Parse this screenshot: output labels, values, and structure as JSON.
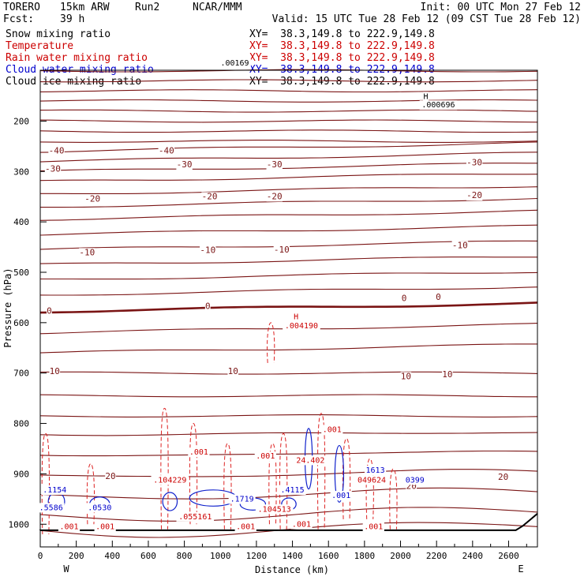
{
  "header": {
    "model": "TORERO",
    "resolution": "15km ARW",
    "run": "Run2",
    "org": "NCAR/MMM",
    "init": "Init: 00 UTC Mon 27 Feb 12",
    "fcst_label": "Fcst:",
    "fcst_value": "39 h",
    "valid": "Valid: 15 UTC Tue 28 Feb 12 (09 CST Tue 28 Feb 12)"
  },
  "fields": [
    {
      "name": "Snow mixing ratio",
      "color": "#000000",
      "xy": "XY=  38.3,149.8 to 222.9,149.8"
    },
    {
      "name": "Temperature",
      "color": "#cc0000",
      "xy": "XY=  38.3,149.8 to 222.9,149.8"
    },
    {
      "name": "Rain water mixing ratio",
      "color": "#cc0000",
      "xy": "XY=  38.3,149.8 to 222.9,149.8"
    },
    {
      "name": "Cloud water mixing ratio",
      "color": "#0000cc",
      "xy": "XY=  38.3,149.8 to 222.9,149.8"
    },
    {
      "name": "Cloud ice mixing ratio",
      "color": "#000000",
      "xy": "XY=  38.3,149.8 to 222.9,149.8"
    }
  ],
  "chart_data": {
    "type": "contour",
    "xlabel": "Distance (km)",
    "ylabel": "Pressure (hPa)",
    "xlim": [
      0,
      2760
    ],
    "ylim": [
      1050,
      100
    ],
    "xticks": [
      0,
      200,
      400,
      600,
      800,
      1000,
      1200,
      1400,
      1600,
      1800,
      2000,
      2200,
      2400,
      2600
    ],
    "yticks": [
      200,
      300,
      400,
      500,
      600,
      700,
      800,
      900,
      1000
    ],
    "x_end_labels": {
      "left": "W",
      "right": "E"
    },
    "temperature_labels": [
      {
        "text": "-40",
        "x": 90,
        "p": 264
      },
      {
        "text": "-40",
        "x": 700,
        "p": 264
      },
      {
        "text": "-30",
        "x": 70,
        "p": 300
      },
      {
        "text": "-30",
        "x": 800,
        "p": 292
      },
      {
        "text": "-30",
        "x": 1300,
        "p": 292
      },
      {
        "text": "-30",
        "x": 2410,
        "p": 288
      },
      {
        "text": "-20",
        "x": 290,
        "p": 360
      },
      {
        "text": "-20",
        "x": 940,
        "p": 355
      },
      {
        "text": "-20",
        "x": 1300,
        "p": 355
      },
      {
        "text": "-20",
        "x": 2410,
        "p": 353
      },
      {
        "text": "-10",
        "x": 260,
        "p": 466
      },
      {
        "text": "-10",
        "x": 930,
        "p": 462
      },
      {
        "text": "-10",
        "x": 1340,
        "p": 461
      },
      {
        "text": "-10",
        "x": 2330,
        "p": 452
      },
      {
        "text": "0",
        "x": 50,
        "p": 582
      },
      {
        "text": "0",
        "x": 930,
        "p": 573
      },
      {
        "text": "0",
        "x": 2020,
        "p": 557
      },
      {
        "text": "0",
        "x": 2210,
        "p": 555
      },
      {
        "text": "10",
        "x": 80,
        "p": 702
      },
      {
        "text": "10",
        "x": 1070,
        "p": 702
      },
      {
        "text": "10",
        "x": 2030,
        "p": 712
      },
      {
        "text": "10",
        "x": 2260,
        "p": 708
      },
      {
        "text": "20",
        "x": 390,
        "p": 910
      },
      {
        "text": "20",
        "x": 2060,
        "p": 930
      },
      {
        "text": "20",
        "x": 2570,
        "p": 912
      }
    ],
    "field_labels": [
      {
        "text": ".00169",
        "x": 1080,
        "p": 90,
        "color": "#000000"
      },
      {
        "text": ".000696",
        "x": 2210,
        "p": 173,
        "color": "#000000"
      },
      {
        "text": "H",
        "x": 2140,
        "p": 156,
        "color": "#000000"
      },
      {
        "text": ".004190",
        "x": 1450,
        "p": 611,
        "color": "#cc0000"
      },
      {
        "text": "H",
        "x": 1420,
        "p": 593,
        "color": "#cc0000"
      },
      {
        "text": ".001",
        "x": 880,
        "p": 862,
        "color": "#cc0000"
      },
      {
        "text": ".001",
        "x": 1250,
        "p": 870,
        "color": "#cc0000"
      },
      {
        "text": ".001",
        "x": 1620,
        "p": 817,
        "color": "#cc0000"
      },
      {
        "text": "24.402",
        "x": 1500,
        "p": 878,
        "color": "#cc0000"
      },
      {
        "text": "049624",
        "x": 1840,
        "p": 917,
        "color": "#cc0000"
      },
      {
        "text": ".104229",
        "x": 720,
        "p": 917,
        "color": "#cc0000"
      },
      {
        "text": ".055161",
        "x": 860,
        "p": 990,
        "color": "#cc0000"
      },
      {
        "text": ".104513",
        "x": 1300,
        "p": 975,
        "color": "#cc0000"
      },
      {
        "text": ".001",
        "x": 160,
        "p": 1010,
        "color": "#cc0000"
      },
      {
        "text": ".001",
        "x": 360,
        "p": 1010,
        "color": "#cc0000"
      },
      {
        "text": ".001",
        "x": 1140,
        "p": 1010,
        "color": "#cc0000"
      },
      {
        "text": ".001",
        "x": 1450,
        "p": 1005,
        "color": "#cc0000"
      },
      {
        "text": ".001",
        "x": 1850,
        "p": 1010,
        "color": "#cc0000"
      },
      {
        "text": ".1154",
        "x": 80,
        "p": 937,
        "color": "#0000cc"
      },
      {
        "text": ".5586",
        "x": 60,
        "p": 972,
        "color": "#0000cc"
      },
      {
        "text": ".0530",
        "x": 330,
        "p": 972,
        "color": "#0000cc"
      },
      {
        "text": ".1719",
        "x": 1120,
        "p": 955,
        "color": "#0000cc"
      },
      {
        "text": ".4115",
        "x": 1400,
        "p": 937,
        "color": "#0000cc"
      },
      {
        "text": "1613",
        "x": 1860,
        "p": 898,
        "color": "#0000cc"
      },
      {
        "text": "0399",
        "x": 2080,
        "p": 917,
        "color": "#0000cc"
      },
      {
        "text": ".001",
        "x": 1670,
        "p": 948,
        "color": "#0000cc"
      }
    ]
  }
}
